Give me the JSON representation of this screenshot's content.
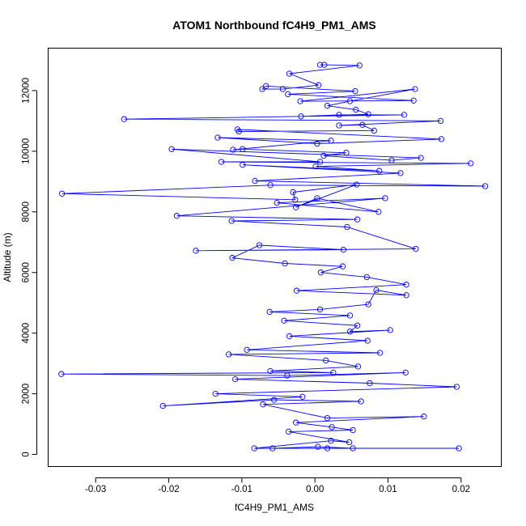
{
  "chart_data": {
    "type": "scatter",
    "title": "ATOM1 Northbound fC4H9_PM1_AMS",
    "xlabel": "fC4H9_PM1_AMS",
    "ylabel": "Altitude (m)",
    "xlim": [
      -0.0365,
      0.0255
    ],
    "ylim": [
      -400,
      13400
    ],
    "x_ticks": [
      -0.03,
      -0.02,
      -0.01,
      0.0,
      0.01,
      0.02
    ],
    "x_tick_labels": [
      "-0.03",
      "-0.02",
      "-0.01",
      "0.00",
      "0.01",
      "0.02"
    ],
    "y_ticks": [
      0,
      2000,
      4000,
      6000,
      8000,
      10000,
      12000
    ],
    "y_tick_labels": [
      "0",
      "2000",
      "4000",
      "6000",
      "8000",
      "10000",
      "12000"
    ],
    "grid": false,
    "legend": "none",
    "line_and_points": true,
    "color": "#0000ff",
    "series": [
      {
        "x": [
          0.0007,
          0.0013,
          0.0061,
          -0.0035,
          0.0005,
          -0.0044,
          -0.0072,
          -0.0067,
          0.0055,
          -0.0037,
          0.0135,
          -0.002,
          0.0137,
          0.0048,
          0.0017,
          0.0056,
          0.0073,
          -0.0019,
          0.0033,
          0.0122,
          -0.0261,
          0.0172,
          0.0033,
          0.0065,
          0.0081,
          -0.0104,
          -0.0106,
          0.0173,
          0.0003,
          -0.0133,
          0.0022,
          -0.0112,
          -0.0099,
          0.0043,
          0.0012,
          0.0105,
          0.0145,
          -0.0196,
          0.0007,
          -0.0128,
          0.0213,
          0.0001,
          0.0088,
          -0.0099,
          0.0117,
          -0.0082,
          0.0233,
          -0.0061,
          -0.0346,
          -0.0027,
          -0.003,
          0.0057,
          -0.0026,
          0.0003,
          0.0087,
          -0.0052,
          0.0096,
          -0.0189,
          0.0058,
          -0.0114,
          0.0044,
          0.0138,
          -0.0163,
          0.0039,
          -0.0076,
          -0.0113,
          -0.0041,
          0.0038,
          0.0008,
          0.0071,
          0.0125,
          -0.0025,
          0.0125,
          0.0084,
          0.0073,
          0.0007,
          -0.0062,
          0.0048,
          -0.0042,
          0.0058,
          0.0048,
          0.0103,
          -0.0035,
          0.0072,
          -0.0093,
          0.0089,
          -0.0118,
          0.0015,
          0.0059,
          -0.0061,
          0.0025,
          -0.0347,
          -0.0038,
          0.0124,
          -0.0109,
          0.0075,
          0.0194,
          -0.0136,
          -0.0017,
          -0.0208,
          -0.0056,
          0.0063,
          -0.0071,
          0.0017,
          0.0149,
          -0.0026,
          0.0023,
          0.0052,
          -0.0036,
          0.0047,
          0.0022,
          -0.0083,
          0.0197,
          -0.0058,
          0.0004,
          0.0052,
          0.0017
        ],
        "y": [
          12850,
          12850,
          12830,
          12560,
          12180,
          12050,
          12050,
          12150,
          11980,
          11880,
          11670,
          11650,
          12050,
          11650,
          11500,
          11370,
          11220,
          11150,
          11200,
          11200,
          11060,
          11000,
          10850,
          10870,
          10680,
          10650,
          10720,
          10400,
          10250,
          10450,
          10350,
          10050,
          10070,
          9950,
          9850,
          9700,
          9780,
          10070,
          9650,
          9650,
          9600,
          9500,
          9350,
          9550,
          9280,
          9020,
          8850,
          8880,
          8600,
          8400,
          8650,
          8900,
          8150,
          8450,
          8000,
          8300,
          8450,
          7870,
          7750,
          7700,
          7500,
          6780,
          6720,
          6750,
          6900,
          6480,
          6300,
          6200,
          6000,
          5850,
          5600,
          5400,
          5250,
          5420,
          4950,
          4780,
          4700,
          4580,
          4410,
          4250,
          4050,
          4100,
          3900,
          3750,
          3450,
          3350,
          3300,
          3100,
          2900,
          2750,
          2700,
          2650,
          2600,
          2700,
          2480,
          2350,
          2230,
          2000,
          1900,
          1600,
          1800,
          1750,
          1650,
          1200,
          1250,
          1050,
          900,
          800,
          750,
          400,
          450,
          200,
          200,
          200,
          250,
          200,
          200
        ]
      }
    ]
  }
}
